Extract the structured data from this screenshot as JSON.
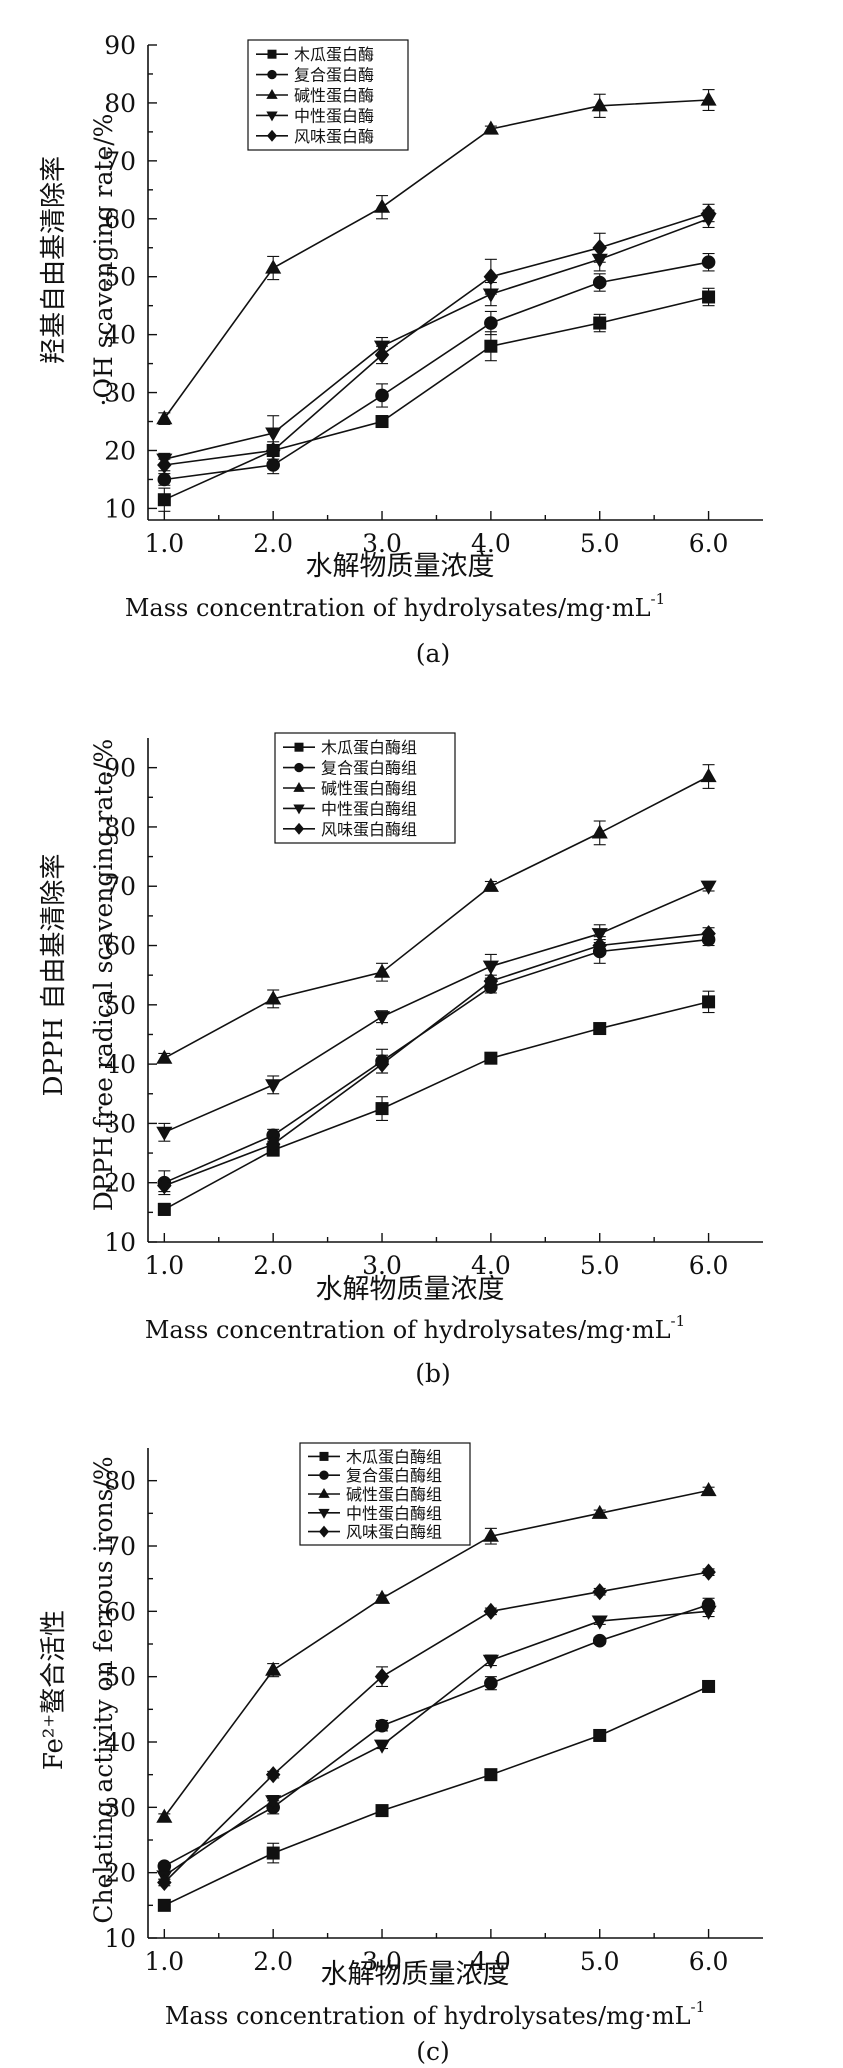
{
  "legend_marker_order": [
    "square",
    "circle",
    "triangle-up",
    "triangle-down",
    "diamond"
  ],
  "chart_data": [
    {
      "type": "line",
      "panel_label": "(a)",
      "title": "",
      "ylabel_cn": "羟基自由基清除率",
      "ylabel_en": "·OH scavenging rate/%",
      "xlabel_cn": "水解物质量浓度",
      "xlabel_en": "Mass concentration of hydrolysates/mg·mL",
      "xlabel_sup": "-1",
      "x": [
        1.0,
        2.0,
        3.0,
        4.0,
        5.0,
        6.0
      ],
      "x_tick_labels": [
        "1.0",
        "2.0",
        "3.0",
        "4.0",
        "5.0",
        "6.0"
      ],
      "xlim": [
        0.85,
        6.5
      ],
      "ylim": [
        8,
        90
      ],
      "y_ticks": [
        10,
        20,
        30,
        40,
        50,
        60,
        70,
        80,
        90
      ],
      "legend_placement": "top-left",
      "grid": false,
      "series": [
        {
          "name": "木瓜蛋白酶",
          "marker": "square",
          "values": [
            11.5,
            20.0,
            25.0,
            38.0,
            42.0,
            46.5
          ],
          "errors": [
            2.0,
            1.0,
            1.0,
            2.5,
            1.5,
            1.5
          ]
        },
        {
          "name": "复合蛋白酶",
          "marker": "circle",
          "values": [
            15.0,
            17.5,
            29.5,
            42.0,
            49.0,
            52.5
          ],
          "errors": [
            1.0,
            1.5,
            2.0,
            2.0,
            1.5,
            1.5
          ]
        },
        {
          "name": "碱性蛋白酶",
          "marker": "triangle-up",
          "values": [
            25.5,
            51.5,
            62.0,
            75.5,
            79.5,
            80.5
          ],
          "errors": [
            1.0,
            2.0,
            2.0,
            0.5,
            2.0,
            1.8
          ]
        },
        {
          "name": "中性蛋白酶",
          "marker": "triangle-down",
          "values": [
            18.5,
            23.0,
            38.0,
            47.0,
            53.0,
            60.0
          ],
          "errors": [
            1.0,
            3.0,
            1.5,
            2.0,
            2.0,
            1.5
          ]
        },
        {
          "name": "风味蛋白酶",
          "marker": "diamond",
          "values": [
            17.5,
            20.0,
            36.5,
            50.0,
            55.0,
            61.0
          ],
          "errors": [
            1.0,
            1.5,
            1.5,
            3.0,
            2.5,
            1.5
          ]
        }
      ]
    },
    {
      "type": "line",
      "panel_label": "(b)",
      "title": "",
      "ylabel_cn": "DPPH 自由基清除率",
      "ylabel_en": "DPPH free radical scavenging rate/%",
      "xlabel_cn": "水解物质量浓度",
      "xlabel_en": "Mass concentration of hydrolysates/mg·mL",
      "xlabel_sup": "-1",
      "x": [
        1.0,
        2.0,
        3.0,
        4.0,
        5.0,
        6.0
      ],
      "x_tick_labels": [
        "1.0",
        "2.0",
        "3.0",
        "4.0",
        "5.0",
        "6.0"
      ],
      "xlim": [
        0.85,
        6.5
      ],
      "ylim": [
        10,
        95
      ],
      "y_ticks": [
        10,
        20,
        30,
        40,
        50,
        60,
        70,
        80,
        90
      ],
      "legend_placement": "top-left",
      "grid": false,
      "series": [
        {
          "name": "木瓜蛋白酶组",
          "marker": "square",
          "values": [
            15.5,
            25.5,
            32.5,
            41.0,
            46.0,
            50.5
          ],
          "errors": [
            1.0,
            1.0,
            2.0,
            0.8,
            0.8,
            1.8
          ]
        },
        {
          "name": "复合蛋白酶组",
          "marker": "circle",
          "values": [
            20.0,
            28.0,
            40.5,
            53.0,
            59.0,
            61.0
          ],
          "errors": [
            2.0,
            1.0,
            2.0,
            1.0,
            2.0,
            1.0
          ]
        },
        {
          "name": "碱性蛋白酶组",
          "marker": "triangle-up",
          "values": [
            41.0,
            51.0,
            55.5,
            70.0,
            79.0,
            88.5
          ],
          "errors": [
            0.8,
            1.5,
            1.5,
            0.8,
            2.0,
            2.0
          ]
        },
        {
          "name": "中性蛋白酶组",
          "marker": "triangle-down",
          "values": [
            28.5,
            36.5,
            48.0,
            56.5,
            62.0,
            70.0
          ],
          "errors": [
            1.5,
            1.5,
            1.0,
            2.0,
            1.5,
            0.8
          ]
        },
        {
          "name": "风味蛋白酶组",
          "marker": "diamond",
          "values": [
            19.5,
            26.5,
            40.0,
            54.0,
            60.0,
            62.0
          ],
          "errors": [
            1.0,
            1.0,
            1.5,
            1.0,
            1.5,
            1.0
          ]
        }
      ]
    },
    {
      "type": "line",
      "panel_label": "(c)",
      "title": "",
      "ylabel_cn": "Fe²⁺螯合活性",
      "ylabel_en": "Chelating activity on ferrous irons/%",
      "xlabel_cn": "水解物质量浓度",
      "xlabel_en": "Mass concentration of hydrolysates/mg·mL",
      "xlabel_sup": "-1",
      "x": [
        1.0,
        2.0,
        3.0,
        4.0,
        5.0,
        6.0
      ],
      "x_tick_labels": [
        "1.0",
        "2.0",
        "3.0",
        "4.0",
        "5.0",
        "6.0"
      ],
      "xlim": [
        0.85,
        6.5
      ],
      "ylim": [
        10,
        85
      ],
      "y_ticks": [
        10,
        20,
        30,
        40,
        50,
        60,
        70,
        80
      ],
      "legend_placement": "top-left",
      "grid": false,
      "series": [
        {
          "name": "木瓜蛋白酶组",
          "marker": "square",
          "values": [
            15.0,
            23.0,
            29.5,
            35.0,
            41.0,
            48.5
          ],
          "errors": [
            0.5,
            1.5,
            0.5,
            0.5,
            0.5,
            0.5
          ]
        },
        {
          "name": "复合蛋白酶组",
          "marker": "circle",
          "values": [
            21.0,
            30.0,
            42.5,
            49.0,
            55.5,
            61.0
          ],
          "errors": [
            0.5,
            1.0,
            0.8,
            1.0,
            0.5,
            1.0
          ]
        },
        {
          "name": "碱性蛋白酶组",
          "marker": "triangle-up",
          "values": [
            28.5,
            51.0,
            62.0,
            71.5,
            75.0,
            78.5
          ],
          "errors": [
            0.5,
            1.0,
            0.5,
            1.2,
            0.5,
            0.5
          ]
        },
        {
          "name": "中性蛋白酶组",
          "marker": "triangle-down",
          "values": [
            19.5,
            31.0,
            39.5,
            52.5,
            58.5,
            60.0
          ],
          "errors": [
            0.5,
            0.8,
            0.5,
            0.8,
            0.5,
            0.8
          ]
        },
        {
          "name": "风味蛋白酶组",
          "marker": "diamond",
          "values": [
            18.5,
            35.0,
            50.0,
            60.0,
            63.0,
            66.0
          ],
          "errors": [
            0.5,
            0.5,
            1.5,
            0.5,
            0.5,
            0.5
          ]
        }
      ]
    }
  ]
}
